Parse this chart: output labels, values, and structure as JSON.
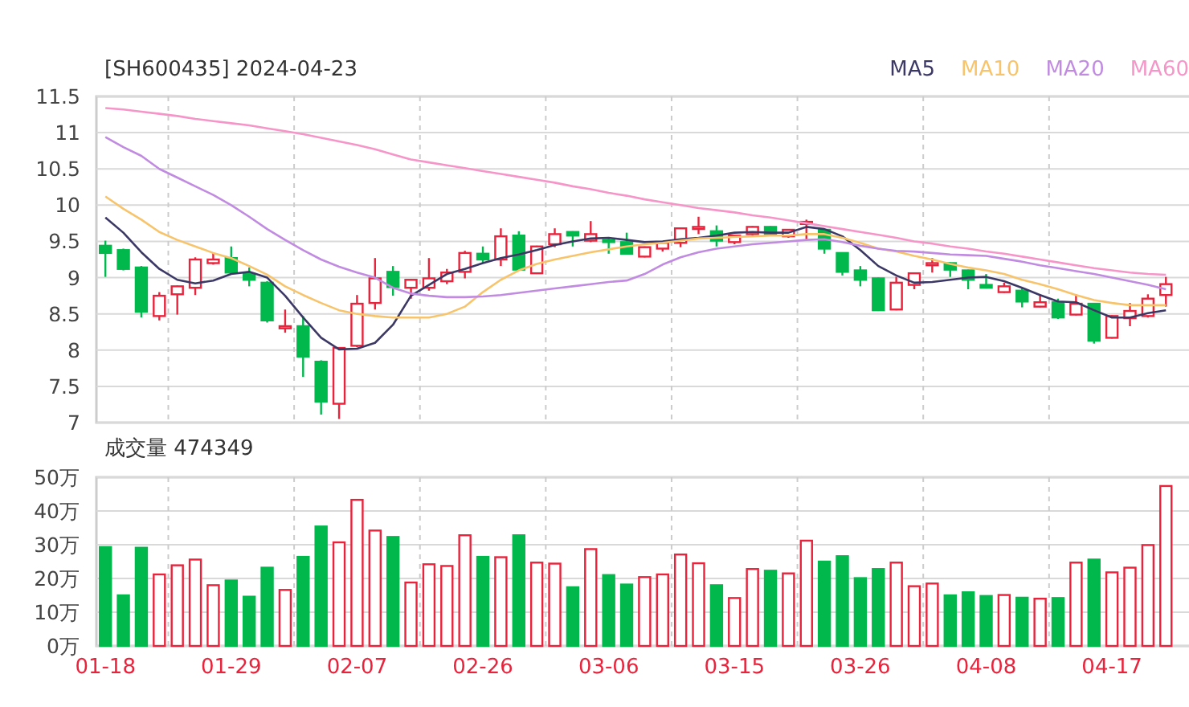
{
  "chart_data": [
    {
      "type": "candlestick",
      "title": "[SH600435] 2024-04-23",
      "categories": [
        null,
        null,
        null,
        null,
        null,
        null,
        null,
        null,
        null,
        null,
        null,
        null,
        null,
        null,
        null,
        null,
        null,
        null,
        null,
        null,
        null,
        null,
        null,
        null,
        null,
        null,
        null,
        null,
        null,
        null,
        null,
        null,
        null,
        null,
        null,
        null,
        null,
        null,
        null,
        null,
        null,
        null,
        null,
        null,
        null,
        null,
        null,
        null,
        null,
        null,
        null,
        null,
        null,
        null,
        null,
        null,
        null,
        null,
        null,
        null
      ],
      "ohlc": [
        [
          9.44,
          9.51,
          9.01,
          9.34
        ],
        [
          9.38,
          9.4,
          9.1,
          9.12
        ],
        [
          9.14,
          9.16,
          8.45,
          8.53
        ],
        [
          8.47,
          8.8,
          8.41,
          8.75
        ],
        [
          8.77,
          8.89,
          8.49,
          8.88
        ],
        [
          8.86,
          9.28,
          8.76,
          9.25
        ],
        [
          9.2,
          9.34,
          9.18,
          9.25
        ],
        [
          9.27,
          9.43,
          9.05,
          9.07
        ],
        [
          9.05,
          9.14,
          8.88,
          8.97
        ],
        [
          8.93,
          8.95,
          8.38,
          8.41
        ],
        [
          8.3,
          8.56,
          8.24,
          8.33
        ],
        [
          8.33,
          8.47,
          7.63,
          7.91
        ],
        [
          7.84,
          7.86,
          7.11,
          7.29
        ],
        [
          7.26,
          8.04,
          7.05,
          8.03
        ],
        [
          8.06,
          8.76,
          8.04,
          8.64
        ],
        [
          8.65,
          9.27,
          8.56,
          8.99
        ],
        [
          9.08,
          9.16,
          8.75,
          8.87
        ],
        [
          8.86,
          8.98,
          8.71,
          8.97
        ],
        [
          8.86,
          9.27,
          8.82,
          8.99
        ],
        [
          8.95,
          9.12,
          8.91,
          9.07
        ],
        [
          9.08,
          9.37,
          8.99,
          9.34
        ],
        [
          9.33,
          9.43,
          9.2,
          9.25
        ],
        [
          9.25,
          9.68,
          9.16,
          9.57
        ],
        [
          9.58,
          9.64,
          9.1,
          9.11
        ],
        [
          9.06,
          9.44,
          9.05,
          9.43
        ],
        [
          9.46,
          9.68,
          9.42,
          9.6
        ],
        [
          9.63,
          9.64,
          9.43,
          9.58
        ],
        [
          9.51,
          9.78,
          9.49,
          9.6
        ],
        [
          9.52,
          9.55,
          9.33,
          9.49
        ],
        [
          9.49,
          9.62,
          9.32,
          9.33
        ],
        [
          9.29,
          9.43,
          9.28,
          9.42
        ],
        [
          9.4,
          9.49,
          9.36,
          9.48
        ],
        [
          9.48,
          9.69,
          9.42,
          9.68
        ],
        [
          9.67,
          9.84,
          9.6,
          9.7
        ],
        [
          9.64,
          9.72,
          9.43,
          9.51
        ],
        [
          9.49,
          9.59,
          9.46,
          9.58
        ],
        [
          9.6,
          9.71,
          9.57,
          9.7
        ],
        [
          9.7,
          9.71,
          9.59,
          9.6
        ],
        [
          9.57,
          9.67,
          9.55,
          9.66
        ],
        [
          9.74,
          9.8,
          9.53,
          9.77
        ],
        [
          9.66,
          9.67,
          9.33,
          9.4
        ],
        [
          9.34,
          9.35,
          9.03,
          9.08
        ],
        [
          9.1,
          9.16,
          8.88,
          8.97
        ],
        [
          8.99,
          9.0,
          8.54,
          8.55
        ],
        [
          8.56,
          9.01,
          8.55,
          8.93
        ],
        [
          8.9,
          9.07,
          8.84,
          9.06
        ],
        [
          9.17,
          9.27,
          9.07,
          9.2
        ],
        [
          9.2,
          9.21,
          9.01,
          9.11
        ],
        [
          9.1,
          9.11,
          8.84,
          8.97
        ],
        [
          8.9,
          9.05,
          8.85,
          8.86
        ],
        [
          8.8,
          8.93,
          8.79,
          8.88
        ],
        [
          8.82,
          8.86,
          8.59,
          8.67
        ],
        [
          8.6,
          8.77,
          8.59,
          8.66
        ],
        [
          8.66,
          8.71,
          8.43,
          8.45
        ],
        [
          8.49,
          8.77,
          8.48,
          8.64
        ],
        [
          8.64,
          8.65,
          8.09,
          8.13
        ],
        [
          8.17,
          8.48,
          8.16,
          8.47
        ],
        [
          8.44,
          8.65,
          8.33,
          8.54
        ],
        [
          8.47,
          8.77,
          8.45,
          8.71
        ],
        [
          8.76,
          9.01,
          8.6,
          8.91
        ]
      ],
      "colors": [
        "#00b84c",
        "#00b84c",
        "#00b84c",
        "#e8233b",
        "#e8233b",
        "#e8233b",
        "#e8233b",
        "#00b84c",
        "#00b84c",
        "#00b84c",
        "#e8233b",
        "#00b84c",
        "#00b84c",
        "#e8233b",
        "#e8233b",
        "#e8233b",
        "#00b84c",
        "#e8233b",
        "#e8233b",
        "#e8233b",
        "#e8233b",
        "#00b84c",
        "#e8233b",
        "#00b84c",
        "#e8233b",
        "#e8233b",
        "#00b84c",
        "#e8233b",
        "#00b84c",
        "#00b84c",
        "#e8233b",
        "#e8233b",
        "#e8233b",
        "#e8233b",
        "#00b84c",
        "#e8233b",
        "#e8233b",
        "#00b84c",
        "#e8233b",
        "#e8233b",
        "#00b84c",
        "#00b84c",
        "#00b84c",
        "#00b84c",
        "#e8233b",
        "#e8233b",
        "#e8233b",
        "#00b84c",
        "#00b84c",
        "#00b84c",
        "#e8233b",
        "#00b84c",
        "#e8233b",
        "#00b84c",
        "#e8233b",
        "#00b84c",
        "#e8233b",
        "#e8233b",
        "#e8233b",
        "#e8233b"
      ],
      "series": [
        {
          "name": "MA5",
          "type": "line",
          "color": "#3b3866",
          "values": [
            9.83,
            9.62,
            9.35,
            9.12,
            8.97,
            8.92,
            8.96,
            9.05,
            9.08,
            9.0,
            8.75,
            8.45,
            8.17,
            8.01,
            8.02,
            8.1,
            8.35,
            8.75,
            8.9,
            9.05,
            9.12,
            9.2,
            9.27,
            9.32,
            9.38,
            9.45,
            9.5,
            9.54,
            9.55,
            9.52,
            9.49,
            9.5,
            9.53,
            9.55,
            9.58,
            9.62,
            9.63,
            9.62,
            9.62,
            9.7,
            9.67,
            9.57,
            9.38,
            9.16,
            9.03,
            8.93,
            8.94,
            8.97,
            9.0,
            9.01,
            8.95,
            8.86,
            8.76,
            8.67,
            8.66,
            8.55,
            8.45,
            8.45,
            8.51,
            8.55
          ]
        },
        {
          "name": "MA10",
          "type": "line",
          "color": "#f7c46c",
          "values": [
            10.12,
            9.95,
            9.8,
            9.63,
            9.52,
            9.43,
            9.34,
            9.27,
            9.16,
            9.04,
            8.88,
            8.76,
            8.65,
            8.55,
            8.5,
            8.47,
            8.45,
            8.45,
            8.45,
            8.5,
            8.6,
            8.8,
            8.97,
            9.1,
            9.19,
            9.25,
            9.3,
            9.35,
            9.39,
            9.43,
            9.46,
            9.48,
            9.51,
            9.54,
            9.55,
            9.56,
            9.57,
            9.58,
            9.58,
            9.6,
            9.6,
            9.55,
            9.48,
            9.4,
            9.36,
            9.3,
            9.25,
            9.19,
            9.14,
            9.1,
            9.05,
            8.97,
            8.91,
            8.84,
            8.76,
            8.69,
            8.65,
            8.62,
            8.62,
            8.62
          ]
        },
        {
          "name": "MA20",
          "type": "line",
          "color": "#c08be0",
          "values": [
            10.94,
            10.8,
            10.68,
            10.5,
            10.38,
            10.26,
            10.14,
            10.0,
            9.84,
            9.67,
            9.52,
            9.38,
            9.25,
            9.15,
            9.07,
            9.0,
            8.86,
            8.78,
            8.75,
            8.73,
            8.73,
            8.74,
            8.76,
            8.79,
            8.82,
            8.85,
            8.88,
            8.91,
            8.94,
            8.96,
            9.05,
            9.18,
            9.28,
            9.35,
            9.4,
            9.43,
            9.46,
            9.48,
            9.5,
            9.52,
            9.53,
            9.49,
            9.44,
            9.4,
            9.37,
            9.36,
            9.34,
            9.32,
            9.31,
            9.3,
            9.26,
            9.22,
            9.17,
            9.13,
            9.09,
            9.05,
            9.0,
            8.95,
            8.9,
            8.84
          ]
        },
        {
          "name": "MA60",
          "type": "line",
          "color": "#f595c8",
          "values": [
            11.34,
            11.32,
            11.29,
            11.26,
            11.23,
            11.19,
            11.16,
            11.13,
            11.1,
            11.06,
            11.02,
            10.98,
            10.93,
            10.88,
            10.83,
            10.77,
            10.7,
            10.63,
            10.59,
            10.55,
            10.51,
            10.47,
            10.43,
            10.39,
            10.35,
            10.31,
            10.26,
            10.22,
            10.17,
            10.13,
            10.08,
            10.04,
            10.0,
            9.96,
            9.93,
            9.9,
            9.86,
            9.83,
            9.79,
            9.75,
            9.71,
            9.67,
            9.63,
            9.59,
            9.55,
            9.5,
            9.47,
            9.43,
            9.4,
            9.36,
            9.33,
            9.29,
            9.25,
            9.21,
            9.17,
            9.13,
            9.1,
            9.07,
            9.05,
            9.04
          ]
        }
      ],
      "ylim": [
        7,
        11.5
      ],
      "yticks": [
        7,
        7.5,
        8,
        8.5,
        9,
        9.5,
        10,
        10.5,
        11,
        11.5
      ],
      "grid": true,
      "legend": "top right",
      "tick_labels": "y"
    },
    {
      "type": "bar",
      "title": "成交量 474349",
      "categories": [
        "01-18",
        null,
        null,
        null,
        null,
        null,
        null,
        "01-29",
        null,
        null,
        null,
        null,
        null,
        null,
        "02-07",
        null,
        null,
        null,
        null,
        null,
        null,
        "02-26",
        null,
        null,
        null,
        null,
        null,
        null,
        "03-06",
        null,
        null,
        null,
        null,
        null,
        null,
        "03-15",
        null,
        null,
        null,
        null,
        null,
        null,
        "03-26",
        null,
        null,
        null,
        null,
        null,
        null,
        "04-08",
        null,
        null,
        null,
        null,
        null,
        null,
        "04-17",
        null,
        null,
        null
      ],
      "values": [
        29.3,
        15,
        29.1,
        21.2,
        23.9,
        25.6,
        18,
        19.4,
        14.6,
        23.2,
        16.6,
        26.4,
        35.4,
        30.7,
        43.3,
        34.2,
        32.3,
        18.8,
        24.2,
        23.7,
        32.8,
        26.4,
        26.3,
        32.8,
        24.7,
        24.4,
        17.4,
        28.7,
        21,
        18.2,
        20.4,
        21.2,
        27.1,
        24.5,
        18,
        14.2,
        22.8,
        22.3,
        21.5,
        31.2,
        25,
        26.6,
        20.1,
        22.8,
        24.7,
        17.7,
        18.5,
        15,
        15.9,
        14.8,
        15.1,
        14.3,
        14,
        14.2,
        24.7,
        25.6,
        21.8,
        23.2,
        29.9,
        47.4
      ],
      "colors": [
        "#00b84c",
        "#00b84c",
        "#00b84c",
        "#e8233b",
        "#e8233b",
        "#e8233b",
        "#e8233b",
        "#00b84c",
        "#00b84c",
        "#00b84c",
        "#e8233b",
        "#00b84c",
        "#00b84c",
        "#e8233b",
        "#e8233b",
        "#e8233b",
        "#00b84c",
        "#e8233b",
        "#e8233b",
        "#e8233b",
        "#e8233b",
        "#00b84c",
        "#e8233b",
        "#00b84c",
        "#e8233b",
        "#e8233b",
        "#00b84c",
        "#e8233b",
        "#00b84c",
        "#00b84c",
        "#e8233b",
        "#e8233b",
        "#e8233b",
        "#e8233b",
        "#00b84c",
        "#e8233b",
        "#e8233b",
        "#00b84c",
        "#e8233b",
        "#e8233b",
        "#00b84c",
        "#00b84c",
        "#00b84c",
        "#00b84c",
        "#e8233b",
        "#e8233b",
        "#e8233b",
        "#00b84c",
        "#00b84c",
        "#00b84c",
        "#e8233b",
        "#00b84c",
        "#e8233b",
        "#00b84c",
        "#e8233b",
        "#00b84c",
        "#e8233b",
        "#e8233b",
        "#e8233b",
        "#e8233b"
      ],
      "ylim": [
        0,
        50
      ],
      "yticks": [
        {
          "value": 0,
          "label": "0万"
        },
        {
          "value": 10,
          "label": "10万"
        },
        {
          "value": 20,
          "label": "20万"
        },
        {
          "value": 30,
          "label": "30万"
        },
        {
          "value": 40,
          "label": "40万"
        },
        {
          "value": 50,
          "label": "50万"
        }
      ],
      "grid": true
    }
  ]
}
